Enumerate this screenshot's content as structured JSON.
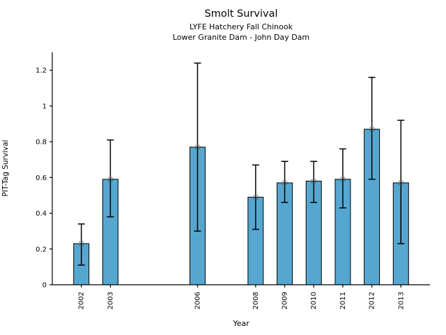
{
  "figure": {
    "title": "Smolt Survival",
    "subtitle_line1": "LYFE Hatchery Fall Chinook",
    "subtitle_line2": "Lower Granite Dam - John Day Dam"
  },
  "chart_data": {
    "type": "bar",
    "title": "Smolt Survival",
    "subtitle": [
      "LYFE Hatchery Fall Chinook",
      "Lower Granite Dam - John Day Dam"
    ],
    "xlabel": "Year",
    "ylabel": "PIT-Tag Survival",
    "categories": [
      "2002",
      "2003",
      "2006",
      "2008",
      "2009",
      "2010",
      "2011",
      "2012",
      "2013"
    ],
    "values": [
      0.23,
      0.59,
      0.77,
      0.49,
      0.57,
      0.58,
      0.59,
      0.87,
      0.57
    ],
    "error_low": [
      0.11,
      0.38,
      0.3,
      0.31,
      0.46,
      0.46,
      0.43,
      0.59,
      0.23
    ],
    "error_high": [
      0.34,
      0.81,
      1.24,
      0.67,
      0.69,
      0.69,
      0.76,
      1.16,
      0.92
    ],
    "x_years": [
      2002,
      2003,
      2006,
      2008,
      2009,
      2010,
      2011,
      2012,
      2013
    ],
    "xlim": [
      2001,
      2014
    ],
    "ylim": [
      0,
      1.3
    ],
    "yticks": [
      0,
      0.2,
      0.4,
      0.6,
      0.8,
      1,
      1.2
    ],
    "ytick_labels": [
      "0",
      "0.2",
      "0.4",
      "0.6",
      "0.8",
      "1",
      "1.2"
    ],
    "grid": false,
    "legend": "none",
    "x_tick_label_rotation_deg": -90,
    "bar_color": "#56a7d0",
    "bar_edge_color": "#000000",
    "error_bar_color": "#000000",
    "marker": "dotted-open-circle",
    "marker_color": "#333333",
    "axis_color": "#000000",
    "background_color": "#ffffff"
  }
}
